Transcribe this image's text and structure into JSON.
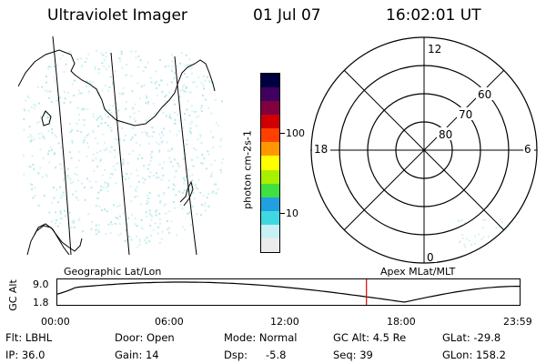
{
  "header": {
    "instrument": "Ultraviolet Imager",
    "date": "01 Jul 07",
    "time": "16:02:01 UT"
  },
  "colorbar": {
    "label": "photon cm-2s-1",
    "ticks": [
      "100",
      "10"
    ],
    "colors": [
      "#ececec",
      "#c8f0f4",
      "#40d8e0",
      "#20a0e0",
      "#40e040",
      "#a8f000",
      "#ffff00",
      "#ff9800",
      "#ff4000",
      "#d00000",
      "#800040",
      "#400060",
      "#000040"
    ]
  },
  "polar": {
    "ring_labels": [
      "80",
      "70",
      "60"
    ],
    "mlt_labels": {
      "top": "12",
      "left": "18",
      "right": "6",
      "bottom": "0"
    },
    "apex_label": "Apex MLat/MLT"
  },
  "geo_label": "Geographic Lat/Lon",
  "timeline": {
    "ylabel": "GC Alt",
    "yticks": [
      "9.0",
      "1.8"
    ],
    "xticks": [
      "00:00",
      "06:00",
      "12:00",
      "18:00",
      "23:59"
    ],
    "current_time_marker": "16:02",
    "marker_color": "#e00000"
  },
  "info": {
    "filter": "Flt: LBHL",
    "ip": "IP: 36.0",
    "door": "Door: Open",
    "gain": "Gain: 14",
    "mode": "Mode: Normal",
    "dsp_label": "Dsp:",
    "dsp_value": "-5.8",
    "gc_alt": "GC Alt: 4.5 Re",
    "seq": "Seq: 39",
    "glat": "GLat: -29.8",
    "glon": "GLon: 158.2"
  }
}
